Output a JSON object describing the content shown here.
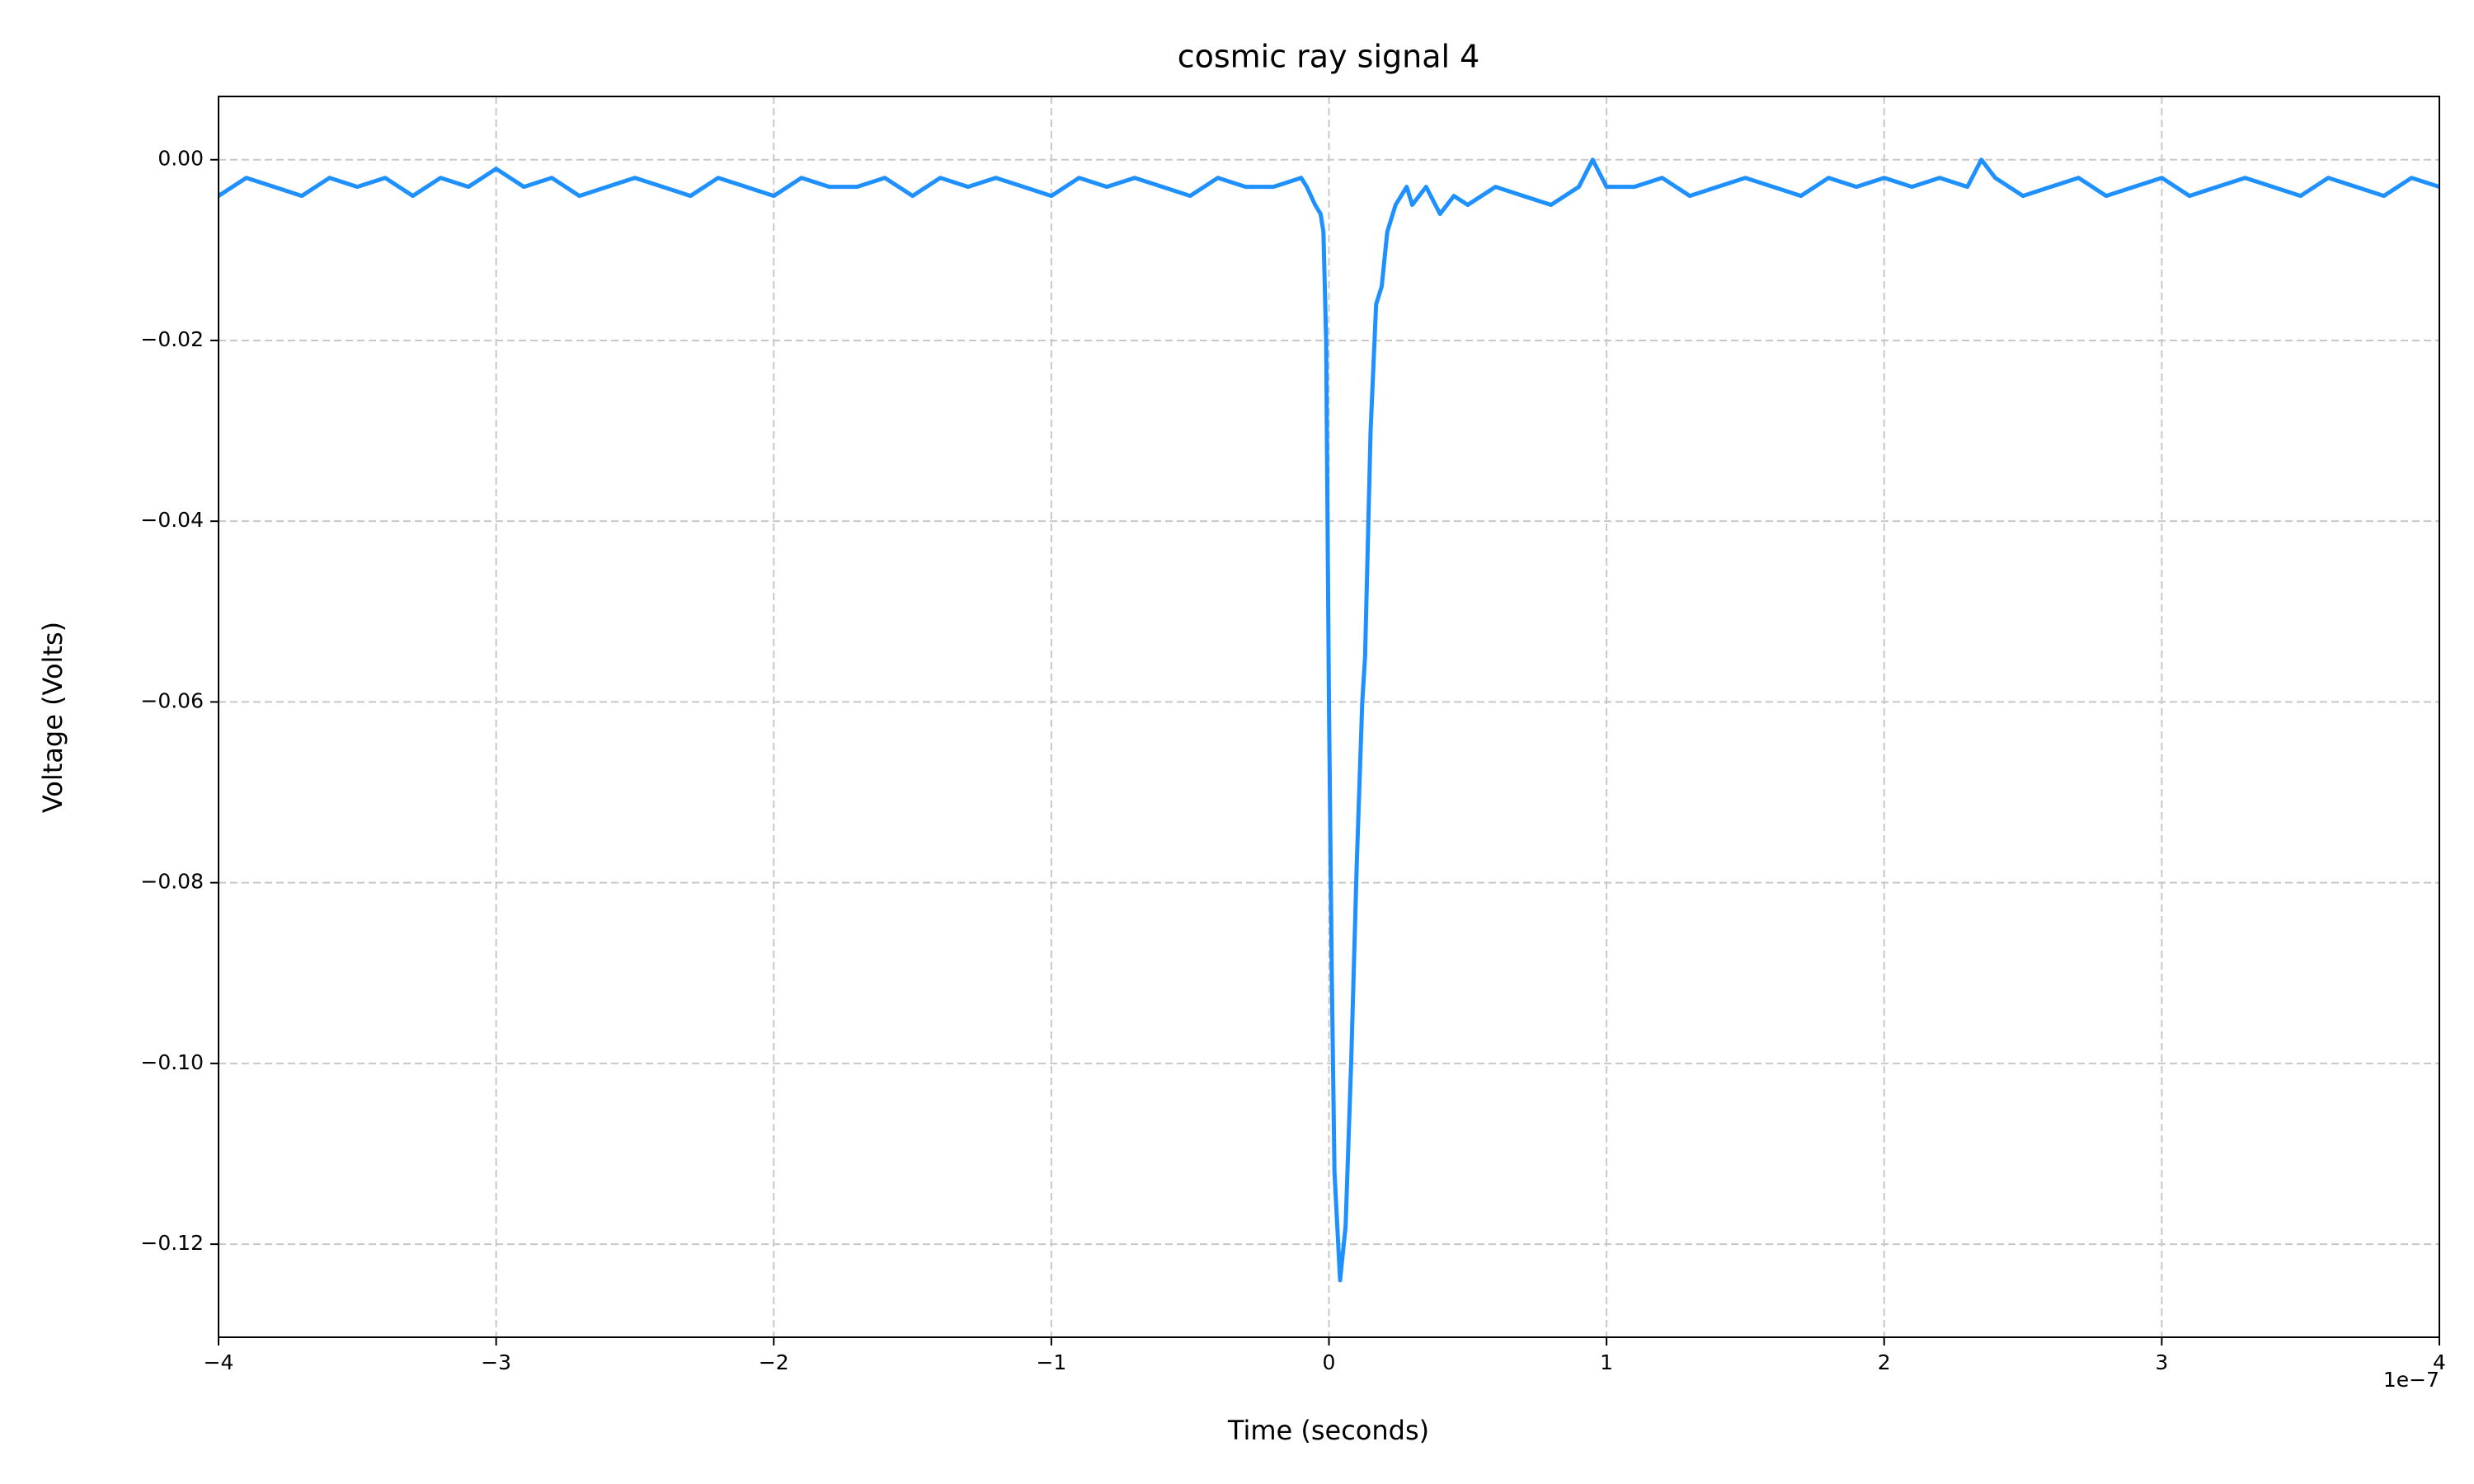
{
  "chart_data": {
    "type": "line",
    "title": "cosmic ray signal 4",
    "xlabel": "Time (seconds)",
    "ylabel": "Voltage (Volts)",
    "x_offset_label": "1e−7",
    "color": "#1e90ff",
    "grid": true,
    "xlim": [
      -4,
      4
    ],
    "ylim": [
      -0.1303,
      0.007
    ],
    "xticks": [
      {
        "value": -4,
        "label": "−4"
      },
      {
        "value": -3,
        "label": "−3"
      },
      {
        "value": -2,
        "label": "−2"
      },
      {
        "value": -1,
        "label": "−1"
      },
      0,
      1,
      2,
      3,
      4
    ],
    "yticks": [
      {
        "value": 0,
        "label": "0.00"
      },
      {
        "value": -0.02,
        "label": "−0.02"
      },
      {
        "value": -0.04,
        "label": "−0.04"
      },
      {
        "value": -0.06,
        "label": "−0.06"
      },
      {
        "value": -0.08,
        "label": "−0.08"
      },
      {
        "value": -0.1,
        "label": "−0.10"
      },
      {
        "value": -0.12,
        "label": "−0.12"
      }
    ],
    "x": [
      -4.0,
      -3.9,
      -3.8,
      -3.7,
      -3.6,
      -3.5,
      -3.4,
      -3.3,
      -3.2,
      -3.1,
      -3.0,
      -2.9,
      -2.8,
      -2.7,
      -2.6,
      -2.5,
      -2.4,
      -2.3,
      -2.2,
      -2.1,
      -2.0,
      -1.9,
      -1.8,
      -1.7,
      -1.6,
      -1.5,
      -1.4,
      -1.3,
      -1.2,
      -1.1,
      -1.0,
      -0.9,
      -0.8,
      -0.7,
      -0.6,
      -0.5,
      -0.4,
      -0.3,
      -0.2,
      -0.1,
      -0.08,
      -0.05,
      -0.03,
      -0.02,
      -0.01,
      0.0,
      0.01,
      0.02,
      0.04,
      0.06,
      0.08,
      0.1,
      0.12,
      0.13,
      0.15,
      0.17,
      0.19,
      0.21,
      0.24,
      0.28,
      0.3,
      0.35,
      0.4,
      0.45,
      0.5,
      0.6,
      0.7,
      0.8,
      0.9,
      0.95,
      1.0,
      1.1,
      1.2,
      1.3,
      1.4,
      1.5,
      1.6,
      1.7,
      1.8,
      1.9,
      2.0,
      2.1,
      2.2,
      2.3,
      2.35,
      2.4,
      2.5,
      2.6,
      2.7,
      2.8,
      2.9,
      3.0,
      3.1,
      3.2,
      3.3,
      3.4,
      3.5,
      3.6,
      3.7,
      3.8,
      3.9,
      4.0
    ],
    "values": [
      -0.004,
      -0.002,
      -0.003,
      -0.004,
      -0.002,
      -0.003,
      -0.002,
      -0.004,
      -0.002,
      -0.003,
      -0.001,
      -0.003,
      -0.002,
      -0.004,
      -0.003,
      -0.002,
      -0.003,
      -0.004,
      -0.002,
      -0.003,
      -0.004,
      -0.002,
      -0.003,
      -0.003,
      -0.002,
      -0.004,
      -0.002,
      -0.003,
      -0.002,
      -0.003,
      -0.004,
      -0.002,
      -0.003,
      -0.002,
      -0.003,
      -0.004,
      -0.002,
      -0.003,
      -0.003,
      -0.002,
      -0.003,
      -0.005,
      -0.006,
      -0.008,
      -0.02,
      -0.06,
      -0.09,
      -0.112,
      -0.124,
      -0.118,
      -0.1,
      -0.078,
      -0.06,
      -0.055,
      -0.03,
      -0.016,
      -0.014,
      -0.008,
      -0.005,
      -0.003,
      -0.005,
      -0.003,
      -0.006,
      -0.004,
      -0.005,
      -0.003,
      -0.004,
      -0.005,
      -0.003,
      0.0,
      -0.003,
      -0.003,
      -0.002,
      -0.004,
      -0.003,
      -0.002,
      -0.003,
      -0.004,
      -0.002,
      -0.003,
      -0.002,
      -0.003,
      -0.002,
      -0.003,
      0.0,
      -0.002,
      -0.004,
      -0.003,
      -0.002,
      -0.004,
      -0.003,
      -0.002,
      -0.004,
      -0.003,
      -0.002,
      -0.003,
      -0.004,
      -0.002,
      -0.003,
      -0.004,
      -0.002,
      -0.003
    ]
  }
}
